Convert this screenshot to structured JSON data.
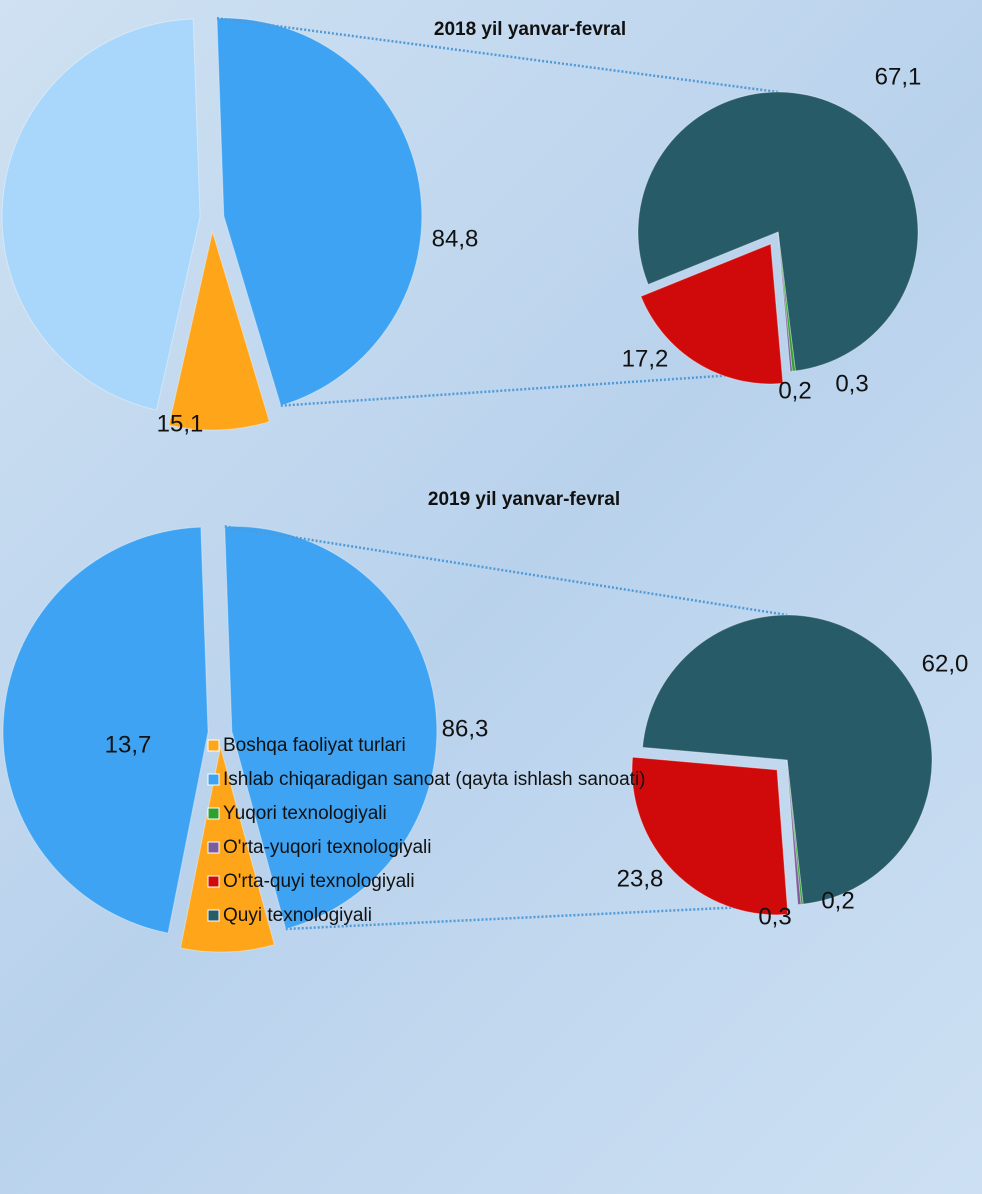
{
  "chart_data": [
    {
      "type": "pie-of-pie",
      "title": "2018 yil yanvar-fevral",
      "categories": [
        "Boshqa faoliyat turlari",
        "Ishlab chiqaradigan sanoat (qayta ishlash sanoati)",
        "Yuqori texnologiyali",
        "O'rta-yuqori texnologiyali",
        "O'rta-quyi texnologiyali",
        "Quyi texnologiyali"
      ],
      "values": [
        15.1,
        84.8,
        0.3,
        0.2,
        17.2,
        67.1
      ],
      "value_labels": [
        "15,1",
        "84,8",
        "0,3",
        "0,2",
        "17,2",
        "67,1"
      ],
      "colors": [
        "#ffa51a",
        "#a9d6fb",
        "#2ea02e",
        "#7d5c9c",
        "#d00a0a",
        "#265b67"
      ],
      "other_color": "#3ea3f2"
    },
    {
      "type": "pie-of-pie",
      "title": "2019 yil yanvar-fevral",
      "categories": [
        "Boshqa faoliyat turlari",
        "Ishlab chiqaradigan sanoat (qayta ishlash sanoati)",
        "Yuqori texnologiyali",
        "O'rta-yuqori texnologiyali",
        "O'rta-quyi texnologiyali",
        "Quyi texnologiyali"
      ],
      "values": [
        13.7,
        86.3,
        0.2,
        0.3,
        23.8,
        62.0
      ],
      "value_labels": [
        "13,7",
        "86,3",
        "0,2",
        "0,3",
        "23,8",
        "62,0"
      ],
      "colors": [
        "#ffa51a",
        "#3ea3f2",
        "#2ea02e",
        "#7d5c9c",
        "#d00a0a",
        "#265b67"
      ],
      "other_color": "#3ea3f2"
    }
  ]
}
